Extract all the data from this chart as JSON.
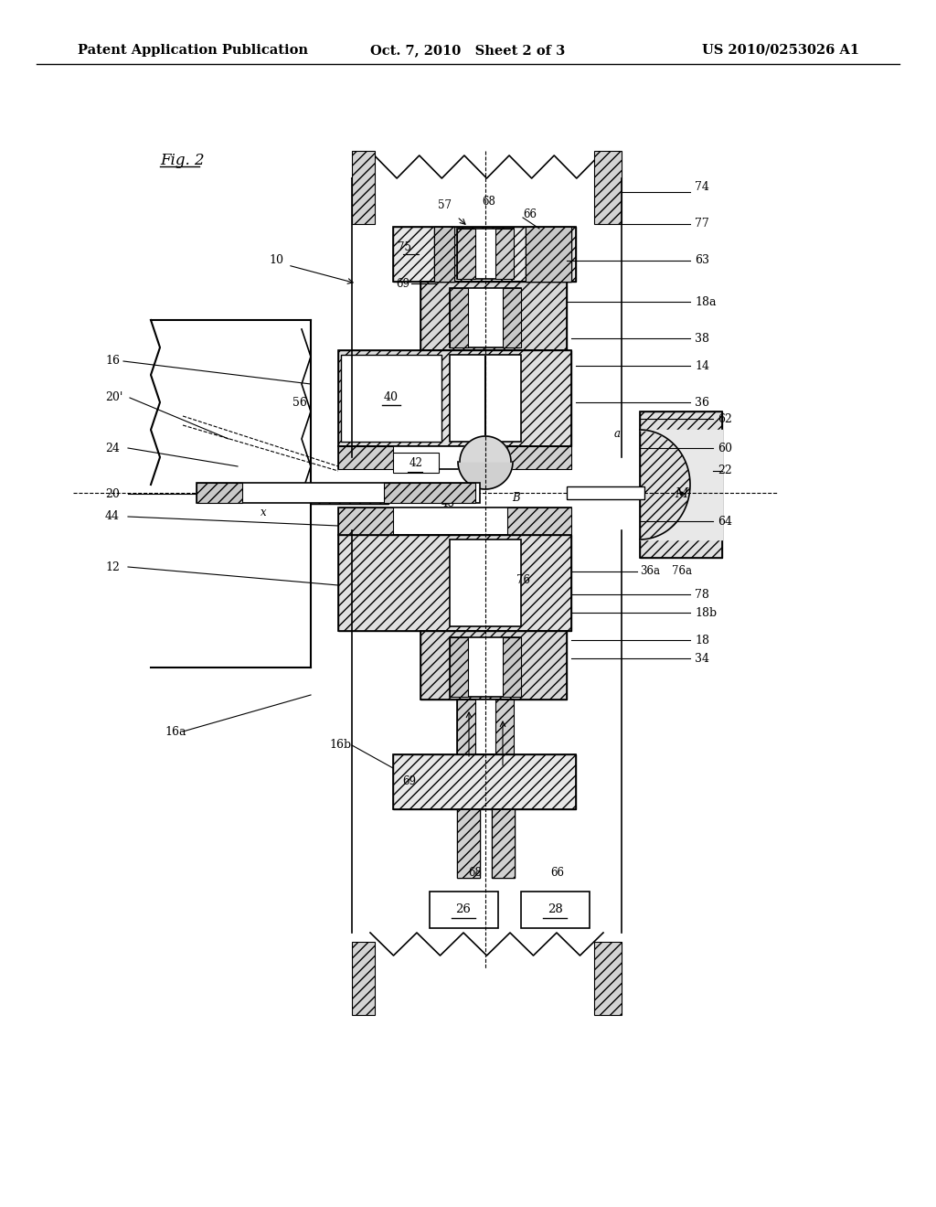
{
  "bg_color": "#ffffff",
  "line_color": "#000000",
  "hatch_color": "#000000",
  "header_left": "Patent Application Publication",
  "header_center": "Oct. 7, 2010   Sheet 2 of 3",
  "header_right": "US 2010/0253026 A1",
  "fig_label": "Fig. 2",
  "title_fontsize": 11,
  "header_fontsize": 10.5
}
